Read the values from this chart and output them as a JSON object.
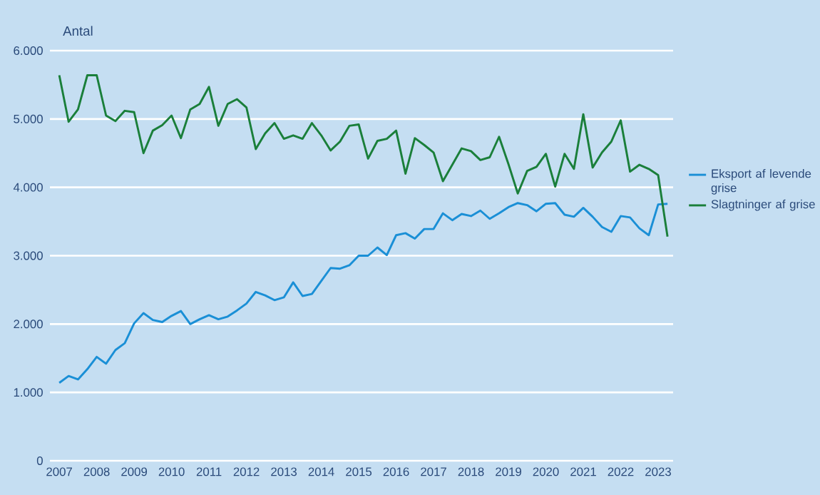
{
  "chart_data": {
    "type": "line",
    "ylabel": "Antal",
    "x": [
      2007.0,
      2007.25,
      2007.5,
      2007.75,
      2008.0,
      2008.25,
      2008.5,
      2008.75,
      2009.0,
      2009.25,
      2009.5,
      2009.75,
      2010.0,
      2010.25,
      2010.5,
      2010.75,
      2011.0,
      2011.25,
      2011.5,
      2011.75,
      2012.0,
      2012.25,
      2012.5,
      2012.75,
      2013.0,
      2013.25,
      2013.5,
      2013.75,
      2014.0,
      2014.25,
      2014.5,
      2014.75,
      2015.0,
      2015.25,
      2015.5,
      2015.75,
      2016.0,
      2016.25,
      2016.5,
      2016.75,
      2017.0,
      2017.25,
      2017.5,
      2017.75,
      2018.0,
      2018.25,
      2018.5,
      2018.75,
      2019.0,
      2019.25,
      2019.5,
      2019.75,
      2020.0,
      2020.25,
      2020.5,
      2020.75,
      2021.0,
      2021.25,
      2021.5,
      2021.75,
      2022.0,
      2022.25,
      2022.5,
      2022.75,
      2023.0,
      2023.25
    ],
    "series": [
      {
        "name": "Eksport af levende grise",
        "color": "#1a8fd6",
        "values": [
          1140,
          1240,
          1190,
          1340,
          1520,
          1420,
          1620,
          1720,
          2010,
          2160,
          2060,
          2030,
          2120,
          2190,
          2000,
          2070,
          2130,
          2070,
          2110,
          2200,
          2300,
          2470,
          2420,
          2350,
          2390,
          2610,
          2410,
          2440,
          2630,
          2820,
          2810,
          2860,
          3000,
          3000,
          3120,
          3010,
          3300,
          3330,
          3250,
          3390,
          3390,
          3620,
          3520,
          3610,
          3580,
          3660,
          3540,
          3620,
          3710,
          3770,
          3740,
          3650,
          3760,
          3770,
          3600,
          3570,
          3700,
          3570,
          3420,
          3350,
          3580,
          3560,
          3400,
          3300,
          3750,
          3760
        ]
      },
      {
        "name": "Slagtninger af grise",
        "color": "#1a7f3a",
        "values": [
          5640,
          4960,
          5140,
          5640,
          5640,
          5050,
          4970,
          5120,
          5100,
          4500,
          4830,
          4910,
          5050,
          4720,
          5140,
          5220,
          5470,
          4900,
          5220,
          5290,
          5170,
          4560,
          4790,
          4940,
          4710,
          4760,
          4710,
          4940,
          4760,
          4540,
          4670,
          4900,
          4920,
          4420,
          4680,
          4710,
          4830,
          4200,
          4720,
          4620,
          4510,
          4090,
          4330,
          4570,
          4530,
          4400,
          4440,
          4740,
          4340,
          3910,
          4240,
          4300,
          4490,
          4010,
          4490,
          4270,
          5070,
          4290,
          4510,
          4670,
          4980,
          4230,
          4330,
          4270,
          4180,
          3280
        ]
      }
    ],
    "xlim": [
      2006.75,
      2023.4
    ],
    "xticks": [
      2007,
      2008,
      2009,
      2010,
      2011,
      2012,
      2013,
      2014,
      2015,
      2016,
      2017,
      2018,
      2019,
      2020,
      2021,
      2022,
      2023
    ],
    "ylim": [
      0,
      6000
    ],
    "yticks": [
      {
        "value": 0,
        "label": "0"
      },
      {
        "value": 1000,
        "label": "1.000"
      },
      {
        "value": 2000,
        "label": "2.000"
      },
      {
        "value": 3000,
        "label": "3.000"
      },
      {
        "value": 4000,
        "label": "4.000"
      },
      {
        "value": 5000,
        "label": "5.000"
      },
      {
        "value": 6000,
        "label": "6.000"
      }
    ],
    "grid": "y",
    "legend": "right",
    "marker": "none",
    "line_style": "solid"
  }
}
